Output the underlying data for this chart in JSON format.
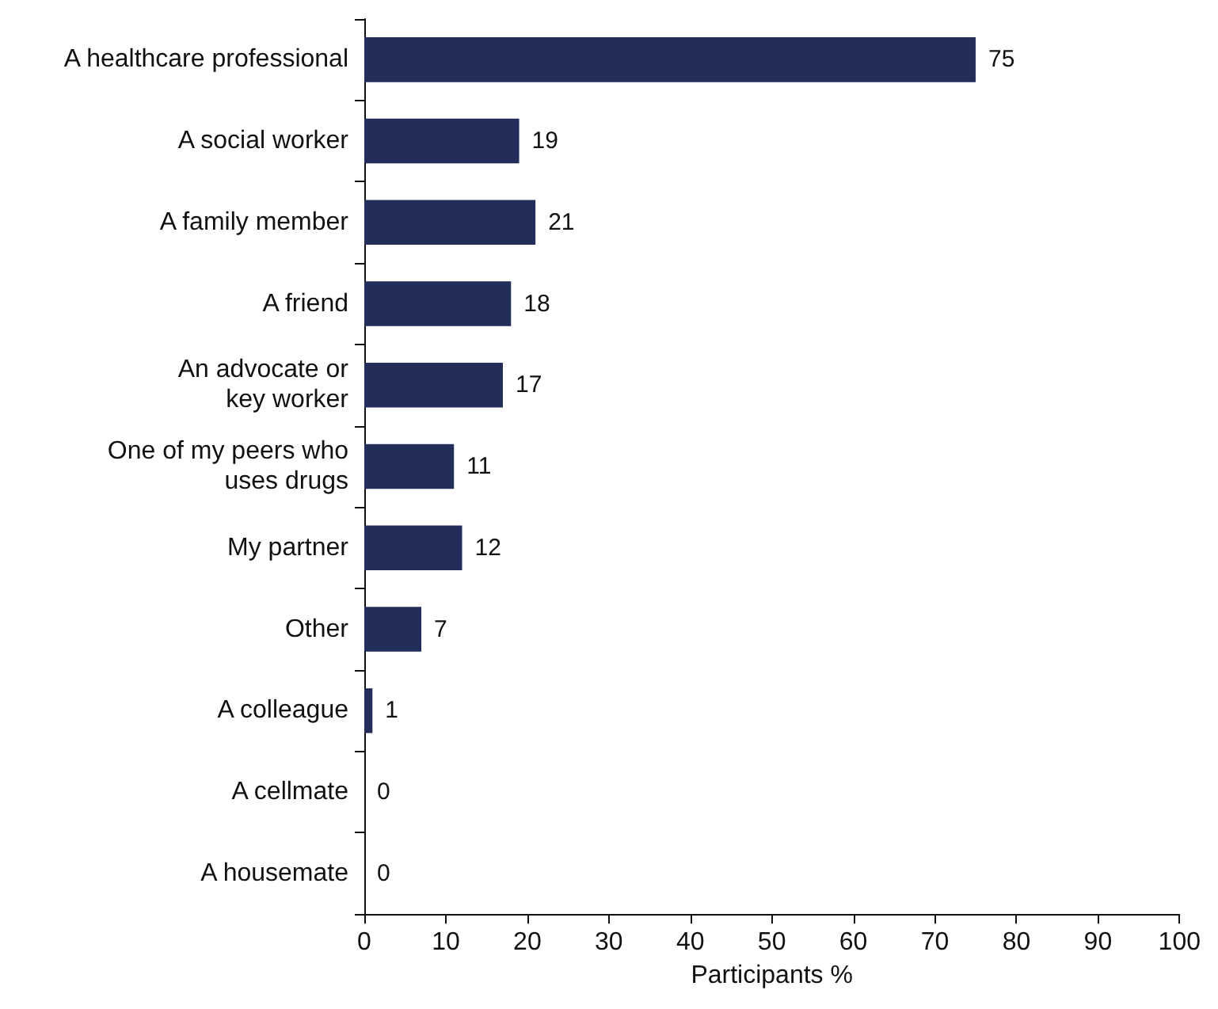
{
  "chart_data": {
    "type": "bar",
    "orientation": "horizontal",
    "xlabel": "Participants %",
    "categories": [
      "A healthcare professional",
      "A social worker",
      "A family member",
      "A friend",
      "An advocate or\nkey worker",
      "One of my peers who\nuses drugs",
      "My partner",
      "Other",
      "A colleague",
      "A cellmate",
      "A housemate"
    ],
    "values": [
      75,
      19,
      21,
      18,
      17,
      11,
      12,
      7,
      1,
      0,
      0
    ],
    "color": "#222d59",
    "xlim": [
      0,
      100
    ],
    "xticks": [
      0,
      10,
      20,
      30,
      40,
      50,
      60,
      70,
      80,
      90,
      100
    ],
    "data_labels": true
  }
}
